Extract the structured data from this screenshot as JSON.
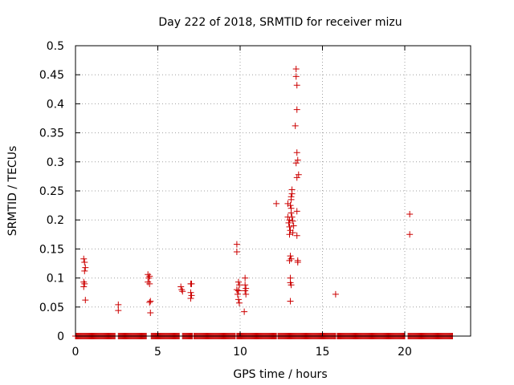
{
  "chart_data": {
    "type": "scatter",
    "title": "Day 222 of 2018, SRMTID for receiver mizu",
    "xlabel": "GPS time / hours",
    "ylabel": "SRMTID / TECUs",
    "xlim": [
      0,
      24.0
    ],
    "ylim": [
      0,
      0.5
    ],
    "xticks": [
      0,
      5,
      10,
      15,
      20
    ],
    "yticks": [
      0,
      0.05,
      0.1,
      0.15,
      0.2,
      0.25,
      0.3,
      0.35,
      0.4,
      0.45,
      0.5
    ],
    "xtick_labels": [
      "0",
      "5",
      "10",
      "15",
      "20"
    ],
    "ytick_labels": [
      "0",
      "0.05",
      "0.1",
      "0.15",
      "0.2",
      "0.25",
      "0.3",
      "0.35",
      "0.4",
      "0.45",
      "0.5"
    ],
    "grid": true,
    "marker": "+",
    "marker_color": "#cc0000",
    "series": [
      {
        "name": "SRMTID",
        "points": [
          [
            0.5,
            0.133
          ],
          [
            0.55,
            0.127
          ],
          [
            0.6,
            0.118
          ],
          [
            0.55,
            0.112
          ],
          [
            0.5,
            0.093
          ],
          [
            0.55,
            0.09
          ],
          [
            0.5,
            0.085
          ],
          [
            0.6,
            0.062
          ],
          [
            2.6,
            0.054
          ],
          [
            2.6,
            0.044
          ],
          [
            4.4,
            0.106
          ],
          [
            4.5,
            0.103
          ],
          [
            4.45,
            0.1
          ],
          [
            4.4,
            0.093
          ],
          [
            4.5,
            0.09
          ],
          [
            4.55,
            0.06
          ],
          [
            4.5,
            0.058
          ],
          [
            4.55,
            0.04
          ],
          [
            6.4,
            0.085
          ],
          [
            6.45,
            0.08
          ],
          [
            6.5,
            0.077
          ],
          [
            7.0,
            0.09
          ],
          [
            7.05,
            0.09
          ],
          [
            7.0,
            0.075
          ],
          [
            7.05,
            0.07
          ],
          [
            7.0,
            0.065
          ],
          [
            9.8,
            0.158
          ],
          [
            9.8,
            0.145
          ],
          [
            9.9,
            0.093
          ],
          [
            9.95,
            0.088
          ],
          [
            9.8,
            0.08
          ],
          [
            9.9,
            0.078
          ],
          [
            9.85,
            0.072
          ],
          [
            9.9,
            0.063
          ],
          [
            9.95,
            0.057
          ],
          [
            10.3,
            0.1
          ],
          [
            10.3,
            0.088
          ],
          [
            10.35,
            0.082
          ],
          [
            10.3,
            0.078
          ],
          [
            10.35,
            0.072
          ],
          [
            10.25,
            0.042
          ],
          [
            12.2,
            0.228
          ],
          [
            12.9,
            0.228
          ],
          [
            12.9,
            0.205
          ],
          [
            12.95,
            0.195
          ],
          [
            13.0,
            0.2
          ],
          [
            13.0,
            0.188
          ],
          [
            13.05,
            0.182
          ],
          [
            13.0,
            0.175
          ],
          [
            13.05,
            0.225
          ],
          [
            13.1,
            0.235
          ],
          [
            13.1,
            0.24
          ],
          [
            13.15,
            0.245
          ],
          [
            13.15,
            0.252
          ],
          [
            13.1,
            0.22
          ],
          [
            13.1,
            0.212
          ],
          [
            13.15,
            0.205
          ],
          [
            13.2,
            0.198
          ],
          [
            13.25,
            0.19
          ],
          [
            13.2,
            0.178
          ],
          [
            13.05,
            0.138
          ],
          [
            13.1,
            0.133
          ],
          [
            13.0,
            0.13
          ],
          [
            13.05,
            0.1
          ],
          [
            13.05,
            0.092
          ],
          [
            13.1,
            0.088
          ],
          [
            13.05,
            0.06
          ],
          [
            13.4,
            0.46
          ],
          [
            13.4,
            0.447
          ],
          [
            13.45,
            0.432
          ],
          [
            13.45,
            0.39
          ],
          [
            13.35,
            0.362
          ],
          [
            13.45,
            0.316
          ],
          [
            13.5,
            0.303
          ],
          [
            13.4,
            0.298
          ],
          [
            13.55,
            0.278
          ],
          [
            13.45,
            0.273
          ],
          [
            13.45,
            0.215
          ],
          [
            13.45,
            0.173
          ],
          [
            13.5,
            0.13
          ],
          [
            13.5,
            0.127
          ],
          [
            15.8,
            0.072
          ],
          [
            20.3,
            0.21
          ],
          [
            20.3,
            0.175
          ]
        ],
        "zero_segments": [
          [
            0.0,
            2.4
          ],
          [
            2.6,
            4.3
          ],
          [
            4.6,
            6.3
          ],
          [
            6.5,
            7.1
          ],
          [
            7.2,
            9.7
          ],
          [
            9.8,
            12.2
          ],
          [
            12.3,
            15.8
          ],
          [
            15.9,
            20.0
          ],
          [
            20.2,
            22.9
          ]
        ]
      }
    ]
  }
}
